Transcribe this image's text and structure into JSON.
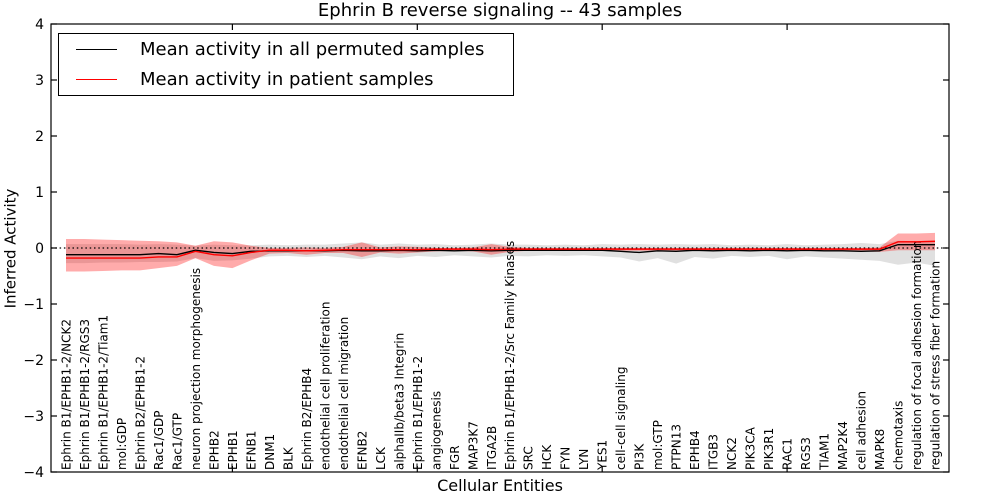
{
  "figure": {
    "title": "Ephrin B reverse signaling -- 43 samples",
    "xlabel": "Cellular Entities",
    "ylabel": "Inferred Activity"
  },
  "legend": {
    "entries": [
      {
        "label": "Mean activity in all permuted samples",
        "color": "#000000"
      },
      {
        "label": "Mean activity in patient samples",
        "color": "#ff0000"
      }
    ]
  },
  "chart_data": {
    "type": "line",
    "title": "Ephrin B reverse signaling -- 43 samples",
    "xlabel": "Cellular Entities",
    "ylabel": "Inferred Activity",
    "ylim": [
      -4,
      4
    ],
    "yticks": [
      -4,
      -3,
      -2,
      -1,
      0,
      1,
      2,
      3,
      4
    ],
    "xticks_major": [
      10,
      20,
      30,
      40
    ],
    "grid": false,
    "legend_position": "upper left",
    "zero_line": {
      "y": 0,
      "style": "dotted",
      "color": "#000000"
    },
    "categories": [
      "Ephrin B1/EPHB1-2/NCK2",
      "Ephrin B1/EPHB1-2/RGS3",
      "Ephrin B1/EPHB1-2/Tiam1",
      "mol:GDP",
      "Ephrin B2/EPHB1-2",
      "Rac1/GDP",
      "Rac1/GTP",
      "neuron projection morphogenesis",
      "EPHB2",
      "EPHB1",
      "EFNB1",
      "DNM1",
      "BLK",
      "Ephrin B2/EPHB4",
      "endothelial cell proliferation",
      "endothelial cell migration",
      "EFNB2",
      "LCK",
      "alphaIIb/beta3 Integrin",
      "Ephrin B1/EPHB1-2",
      "angiogenesis",
      "FGR",
      "MAP3K7",
      "ITGA2B",
      "Ephrin B1/EPHB1-2/Src Family Kinases",
      "SRC",
      "HCK",
      "FYN",
      "LYN",
      "YES1",
      "cell-cell signaling",
      "PI3K",
      "mol:GTP",
      "PTPN13",
      "EPHB4",
      "ITGB3",
      "NCK2",
      "PIK3CA",
      "PIK3R1",
      "RAC1",
      "RGS3",
      "TIAM1",
      "MAP2K4",
      "cell adhesion",
      "MAPK8",
      "chemotaxis",
      "regulation of focal adhesion formation",
      "regulation of stress fiber formation"
    ],
    "series": [
      {
        "name": "Mean activity in all permuted samples",
        "color": "#000000",
        "values": [
          -0.12,
          -0.12,
          -0.12,
          -0.12,
          -0.12,
          -0.1,
          -0.12,
          -0.04,
          -0.08,
          -0.1,
          -0.06,
          -0.05,
          -0.05,
          -0.05,
          -0.05,
          -0.04,
          -0.05,
          -0.05,
          -0.04,
          -0.05,
          -0.04,
          -0.05,
          -0.04,
          -0.05,
          -0.04,
          -0.04,
          -0.04,
          -0.04,
          -0.04,
          -0.04,
          -0.06,
          -0.08,
          -0.05,
          -0.06,
          -0.04,
          -0.05,
          -0.04,
          -0.05,
          -0.04,
          -0.05,
          -0.04,
          -0.05,
          -0.05,
          -0.06,
          -0.05,
          0.06,
          0.06,
          0.06
        ],
        "band": {
          "color": "#999999",
          "opacity": 0.3,
          "upper": [
            0.07,
            0.07,
            0.07,
            0.07,
            0.06,
            0.07,
            0.06,
            0.04,
            0.06,
            0.05,
            0.05,
            0.06,
            0.05,
            0.06,
            0.06,
            0.08,
            0.1,
            0.06,
            0.08,
            0.06,
            0.07,
            0.05,
            0.06,
            0.08,
            0.06,
            0.06,
            0.05,
            0.06,
            0.05,
            0.07,
            0.06,
            0.07,
            0.06,
            0.07,
            0.06,
            0.07,
            0.05,
            0.06,
            0.05,
            0.07,
            0.05,
            0.06,
            0.07,
            0.09,
            0.07,
            0.13,
            0.12,
            0.14
          ],
          "lower": [
            -0.27,
            -0.27,
            -0.26,
            -0.26,
            -0.25,
            -0.25,
            -0.24,
            -0.18,
            -0.23,
            -0.22,
            -0.19,
            -0.15,
            -0.14,
            -0.16,
            -0.14,
            -0.17,
            -0.2,
            -0.15,
            -0.18,
            -0.14,
            -0.16,
            -0.13,
            -0.15,
            -0.17,
            -0.14,
            -0.15,
            -0.13,
            -0.14,
            -0.13,
            -0.15,
            -0.17,
            -0.24,
            -0.18,
            -0.28,
            -0.16,
            -0.19,
            -0.14,
            -0.16,
            -0.14,
            -0.2,
            -0.15,
            -0.17,
            -0.19,
            -0.21,
            -0.23,
            -0.3,
            -0.26,
            -0.32
          ]
        }
      },
      {
        "name": "Mean activity in patient samples",
        "color": "#ff0000",
        "values": [
          -0.18,
          -0.18,
          -0.18,
          -0.18,
          -0.18,
          -0.16,
          -0.16,
          -0.06,
          -0.12,
          -0.14,
          -0.08,
          -0.04,
          -0.04,
          -0.05,
          -0.04,
          -0.03,
          -0.03,
          -0.03,
          -0.03,
          -0.03,
          -0.02,
          -0.02,
          -0.02,
          -0.03,
          -0.02,
          -0.02,
          -0.02,
          -0.02,
          -0.02,
          -0.02,
          -0.02,
          -0.02,
          -0.02,
          -0.02,
          -0.02,
          -0.02,
          -0.02,
          -0.02,
          -0.02,
          -0.02,
          -0.02,
          -0.02,
          -0.02,
          -0.02,
          -0.02,
          0.11,
          0.11,
          0.12
        ],
        "band": {
          "color": "#ff0000",
          "opacity": 0.33,
          "upper": [
            0.16,
            0.16,
            0.15,
            0.14,
            0.13,
            0.12,
            0.1,
            0.04,
            0.12,
            0.1,
            0.04,
            0.0,
            0.0,
            0.01,
            0.0,
            0.02,
            0.1,
            0.01,
            0.03,
            0.02,
            0.0,
            0.0,
            0.01,
            0.07,
            0.02,
            0.0,
            0.0,
            0.0,
            0.0,
            0.0,
            0.0,
            0.0,
            0.0,
            0.0,
            0.0,
            0.0,
            0.0,
            0.0,
            0.0,
            0.0,
            0.0,
            0.0,
            0.0,
            0.0,
            0.01,
            0.26,
            0.26,
            0.27
          ],
          "lower": [
            -0.42,
            -0.42,
            -0.41,
            -0.4,
            -0.4,
            -0.36,
            -0.32,
            -0.18,
            -0.32,
            -0.36,
            -0.22,
            -0.1,
            -0.09,
            -0.12,
            -0.09,
            -0.09,
            -0.16,
            -0.08,
            -0.1,
            -0.08,
            -0.06,
            -0.05,
            -0.06,
            -0.12,
            -0.07,
            -0.05,
            -0.05,
            -0.05,
            -0.05,
            -0.05,
            -0.05,
            -0.05,
            -0.05,
            -0.05,
            -0.05,
            -0.05,
            -0.05,
            -0.05,
            -0.05,
            -0.05,
            -0.05,
            -0.05,
            -0.05,
            -0.06,
            -0.07,
            -0.04,
            -0.04,
            -0.04
          ]
        }
      }
    ]
  }
}
